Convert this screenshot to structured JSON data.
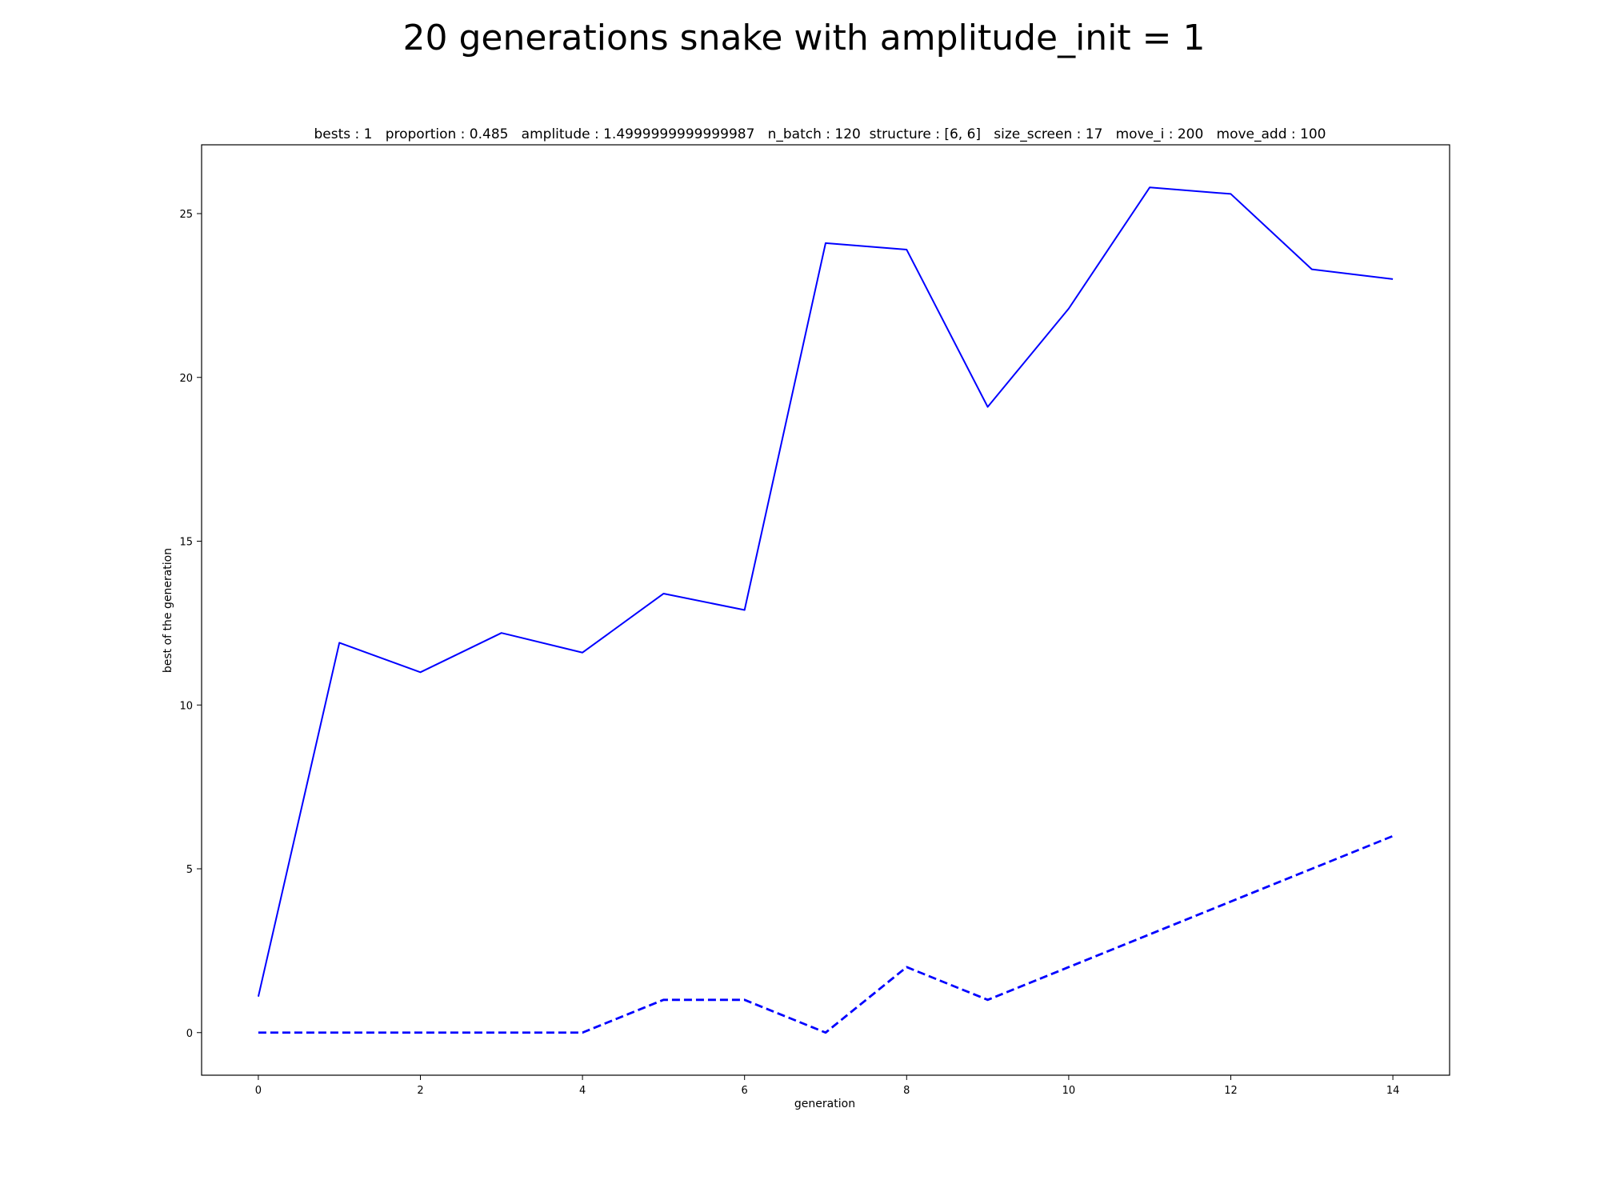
{
  "chart_data": {
    "type": "line",
    "title": "20 generations snake with amplitude_init = 1",
    "subtitle": "bests : 1   proportion : 0.485   amplitude : 1.4999999999999987   n_batch : 120  structure : [6, 6]   size_screen : 17   move_i : 200   move_add : 100",
    "xlabel": "generation",
    "ylabel": "best of the generation",
    "xlim": [
      -0.7,
      14.7
    ],
    "ylim": [
      -1.3,
      27.1
    ],
    "xticks": [
      0,
      2,
      4,
      6,
      8,
      10,
      12,
      14
    ],
    "yticks": [
      0,
      5,
      10,
      15,
      20,
      25
    ],
    "grid": false,
    "x": [
      0,
      1,
      2,
      3,
      4,
      5,
      6,
      7,
      8,
      9,
      10,
      11,
      12,
      13,
      14
    ],
    "series": [
      {
        "style": "solid",
        "color": "#0000ff",
        "values": [
          1.1,
          11.9,
          11.0,
          12.2,
          11.6,
          13.4,
          12.9,
          24.1,
          23.9,
          19.1,
          22.1,
          25.8,
          25.6,
          23.3,
          23.0
        ]
      },
      {
        "style": "dashed",
        "color": "#0000ff",
        "values": [
          0,
          0,
          0,
          0,
          0,
          1,
          1,
          0,
          2,
          1,
          2,
          3,
          4,
          5,
          6
        ]
      }
    ]
  }
}
